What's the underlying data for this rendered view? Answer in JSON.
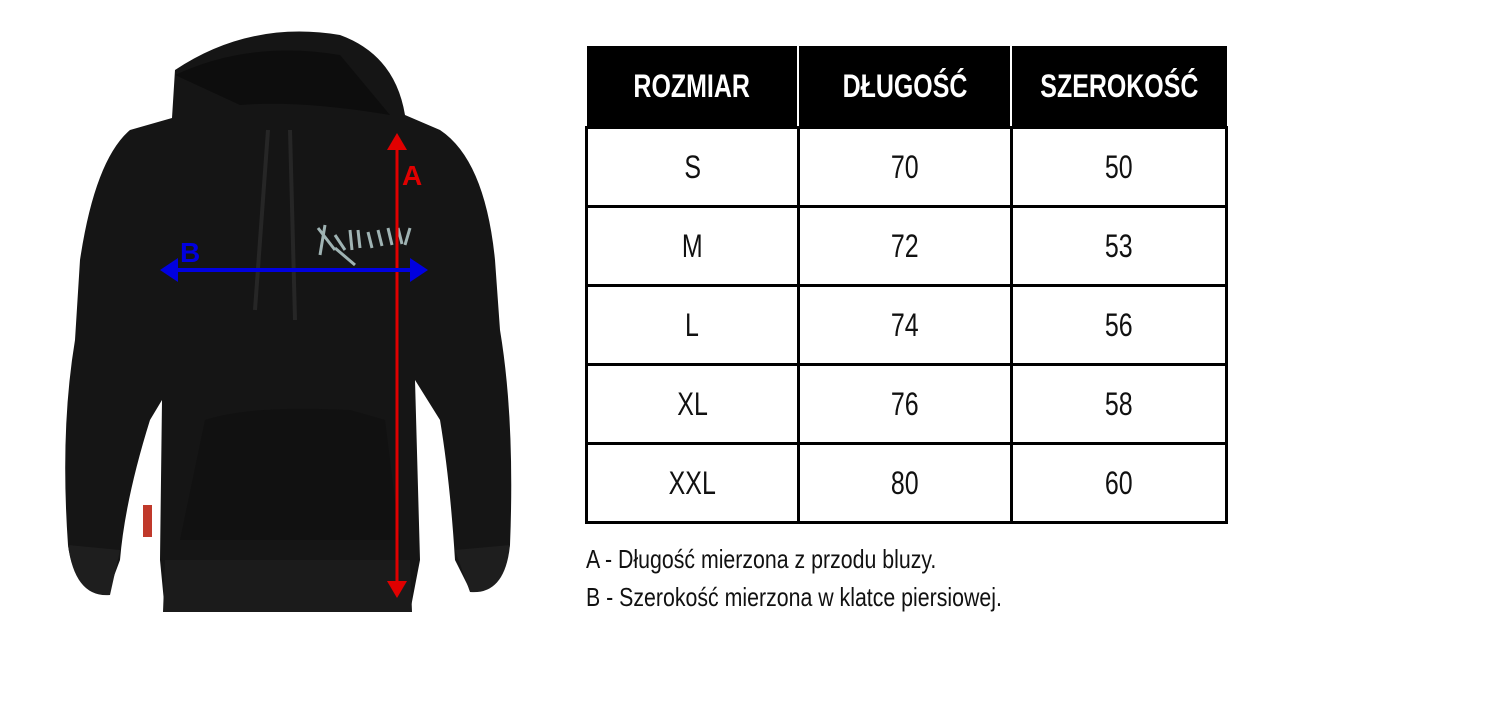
{
  "table": {
    "headers": [
      "ROZMIAR",
      "DŁUGOŚĆ",
      "SZEROKOŚĆ"
    ],
    "rows": [
      [
        "S",
        "70",
        "50"
      ],
      [
        "M",
        "72",
        "53"
      ],
      [
        "L",
        "74",
        "56"
      ],
      [
        "XL",
        "76",
        "58"
      ],
      [
        "XXL",
        "80",
        "60"
      ]
    ]
  },
  "diagram": {
    "label_a": "A",
    "label_b": "B",
    "color_a": "#e00000",
    "color_b": "#0000e0",
    "garment_color": "#141414"
  },
  "notes": [
    "A - Długość mierzona z przodu bluzy.",
    "B - Szerokość mierzona w klatce piersiowej."
  ]
}
